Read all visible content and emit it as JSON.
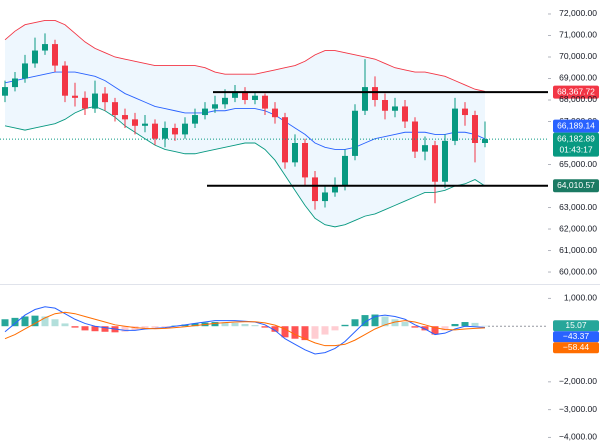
{
  "chart_data": [
    {
      "type": "candlestick",
      "open": [
        68200,
        68600,
        69000,
        69700,
        70300,
        70600,
        69600,
        68200,
        68100,
        67600,
        68300,
        67900,
        67300,
        67100,
        66800,
        66900,
        66200,
        66700,
        66400,
        66900,
        67300,
        67600,
        67800,
        68100,
        68400,
        68000,
        68200,
        67600,
        67200,
        65100,
        66000,
        64400,
        63300,
        63700,
        64000,
        65400,
        67500,
        68600,
        68000,
        67500,
        67700,
        67000,
        65600,
        65900,
        64200,
        66100,
        67600,
        67300,
        66000
      ],
      "high": [
        68900,
        69300,
        70100,
        70900,
        71100,
        70800,
        69800,
        68800,
        68400,
        68900,
        68600,
        68100,
        67600,
        67400,
        67300,
        67100,
        67000,
        66900,
        67200,
        67600,
        67900,
        68200,
        68500,
        68700,
        68600,
        68400,
        68300,
        67900,
        67400,
        66400,
        66200,
        64700,
        64000,
        64400,
        65700,
        67800,
        69900,
        69100,
        68300,
        68100,
        68000,
        67200,
        66300,
        66100,
        66400,
        68100,
        67900,
        67500,
        67000
      ],
      "low": [
        67900,
        68400,
        68800,
        69500,
        70100,
        69300,
        67900,
        67700,
        67300,
        67400,
        67500,
        67000,
        66700,
        66400,
        66500,
        65900,
        65800,
        66100,
        66200,
        66700,
        67100,
        67400,
        67600,
        67900,
        67800,
        67800,
        67300,
        66900,
        64800,
        64900,
        64000,
        62900,
        63000,
        63500,
        63800,
        65200,
        67300,
        67700,
        67100,
        67200,
        66700,
        65300,
        65200,
        63200,
        63900,
        65900,
        66800,
        65100,
        65800
      ],
      "close": [
        68600,
        69000,
        69700,
        70300,
        70600,
        69600,
        68200,
        68100,
        67600,
        68300,
        67900,
        67300,
        67100,
        66800,
        66900,
        66200,
        66700,
        66400,
        66900,
        67300,
        67600,
        67800,
        68100,
        68400,
        68000,
        68200,
        67600,
        67200,
        65100,
        66000,
        64400,
        63300,
        63700,
        64000,
        65400,
        67500,
        68600,
        68000,
        67500,
        67700,
        67000,
        65600,
        65900,
        64200,
        66100,
        67600,
        67300,
        66000,
        66182.89
      ],
      "up_color": "#089981",
      "down_color": "#f23645",
      "bands": {
        "upper": [
          70800,
          71200,
          71500,
          71600,
          71700,
          71700,
          71500,
          71100,
          70700,
          70400,
          70200,
          70000,
          69900,
          69800,
          69700,
          69600,
          69600,
          69600,
          69600,
          69600,
          69500,
          69300,
          69200,
          69200,
          69200,
          69200,
          69300,
          69400,
          69500,
          69600,
          69800,
          70100,
          70300,
          70300,
          70200,
          70100,
          70000,
          69900,
          69700,
          69500,
          69400,
          69300,
          69300,
          69200,
          69100,
          68900,
          68700,
          68500,
          68400
        ],
        "middle": [
          68800,
          68900,
          69000,
          69100,
          69200,
          69300,
          69300,
          69300,
          69200,
          69100,
          68900,
          68600,
          68300,
          68100,
          67900,
          67700,
          67600,
          67500,
          67400,
          67400,
          67400,
          67500,
          67500,
          67600,
          67600,
          67600,
          67500,
          67300,
          67000,
          66700,
          66400,
          66000,
          65800,
          65700,
          65700,
          65800,
          66000,
          66200,
          66300,
          66400,
          66500,
          66500,
          66500,
          66400,
          66400,
          66500,
          66500,
          66400,
          66189.14
        ],
        "lower": [
          66800,
          66700,
          66600,
          66700,
          66800,
          66900,
          67100,
          67400,
          67600,
          67700,
          67500,
          67200,
          66800,
          66500,
          66200,
          65900,
          65700,
          65600,
          65500,
          65500,
          65600,
          65700,
          65800,
          65900,
          66000,
          66000,
          65700,
          65200,
          64500,
          63800,
          63100,
          62500,
          62200,
          62100,
          62200,
          62400,
          62600,
          62700,
          62900,
          63100,
          63300,
          63500,
          63700,
          63700,
          63800,
          64000,
          64100,
          64300,
          64000
        ],
        "upper_color": "#f23645",
        "middle_color": "#2962ff",
        "lower_color": "#089981",
        "fill": "#2196f3"
      },
      "ylim": [
        59490,
        72650
      ],
      "yticks": [
        {
          "value": 72000,
          "label": "72,000.00"
        },
        {
          "value": 71000,
          "label": "71,000.00"
        },
        {
          "value": 70000,
          "label": "70,000.00"
        },
        {
          "value": 69000,
          "label": "69,000.00"
        },
        {
          "value": 68000,
          "label": "68,000.00"
        },
        {
          "value": 67000,
          "label": "67,000.00"
        },
        {
          "value": 65000,
          "label": "65,000.00"
        },
        {
          "value": 63000,
          "label": "63,000.00"
        },
        {
          "value": 62000,
          "label": "62,000.00"
        },
        {
          "value": 61000,
          "label": "61,000.00"
        },
        {
          "value": 60000,
          "label": "60,000.00"
        }
      ],
      "levels": [
        {
          "value": 68367.72,
          "label": "68,367.72",
          "color": "#f23645"
        },
        {
          "value": 64010.57,
          "label": "64,010.57",
          "color": "#1b7a63"
        }
      ],
      "middle_label": {
        "value": 66189.14,
        "label": "66,189.14",
        "color": "#2962ff"
      },
      "last": {
        "value": 66182.89,
        "label": "66,182.89",
        "timer": "01:43:17",
        "color": "#089981"
      }
    },
    {
      "type": "macd",
      "histogram": [
        250,
        300,
        350,
        380,
        350,
        250,
        100,
        -50,
        -150,
        -180,
        -200,
        -220,
        -200,
        -150,
        -100,
        -60,
        -30,
        20,
        60,
        100,
        130,
        150,
        140,
        120,
        80,
        40,
        -50,
        -200,
        -400,
        -450,
        -500,
        -450,
        -300,
        -150,
        50,
        250,
        400,
        420,
        350,
        250,
        150,
        -50,
        -150,
        -300,
        -150,
        80,
        150,
        120,
        15.07
      ],
      "macd": [
        -200,
        100,
        400,
        600,
        700,
        650,
        450,
        250,
        100,
        0,
        -50,
        -100,
        -150,
        -150,
        -100,
        -80,
        -50,
        0,
        50,
        100,
        150,
        200,
        200,
        200,
        180,
        150,
        50,
        -150,
        -450,
        -650,
        -850,
        -1000,
        -950,
        -800,
        -550,
        -200,
        150,
        350,
        400,
        350,
        250,
        50,
        -100,
        -300,
        -250,
        -100,
        0,
        -20,
        -43.37
      ],
      "signal": [
        -450,
        -300,
        -100,
        100,
        300,
        450,
        500,
        450,
        350,
        250,
        150,
        50,
        0,
        -50,
        -80,
        -90,
        -80,
        -50,
        -20,
        20,
        60,
        100,
        130,
        150,
        160,
        160,
        120,
        40,
        -100,
        -300,
        -450,
        -600,
        -700,
        -700,
        -650,
        -500,
        -300,
        -100,
        50,
        150,
        200,
        150,
        50,
        -50,
        -120,
        -130,
        -100,
        -80,
        -58.44
      ],
      "macd_color": "#2962ff",
      "signal_color": "#ff6d00",
      "hist_colors": {
        "up_rising": "#26a69a",
        "up_falling": "#b2dfdb",
        "down_falling": "#ff5252",
        "down_rising": "#ffcdd2"
      },
      "ylim": [
        -4200,
        1500
      ],
      "yticks": [
        {
          "value": 1000,
          "label": "1,000.00"
        },
        {
          "value": -2000,
          "label": "−2,000.00"
        },
        {
          "value": -3000,
          "label": "−3,000.00"
        },
        {
          "value": -4000,
          "label": "−4,000.00"
        }
      ],
      "labels": [
        {
          "value": 15.07,
          "label": "15.07",
          "color": "#26a69a"
        },
        {
          "value": -43.37,
          "label": "−43.37",
          "color": "#2962ff"
        },
        {
          "value": -58.44,
          "label": "−58.44",
          "color": "#ff6d00"
        }
      ]
    }
  ]
}
